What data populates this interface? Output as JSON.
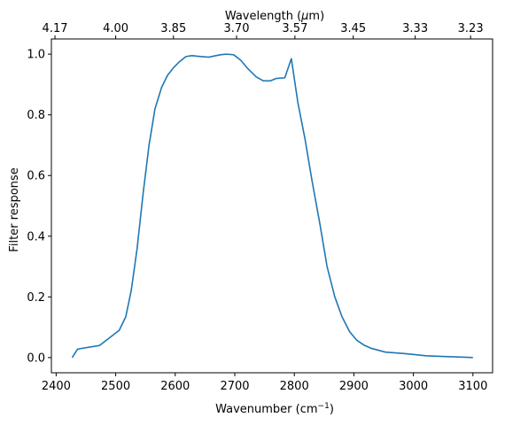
{
  "chart_data": {
    "type": "line",
    "xlabel": "Wavenumber (cm",
    "xlabel_sup": "−1",
    "xlabel_close": ")",
    "ylabel": "Filter response",
    "top_label": "Wavelength (",
    "top_label_mu": "μ",
    "top_label_close": "m)",
    "xlim": [
      2392,
      3133
    ],
    "ylim": [
      -0.05,
      1.05
    ],
    "xticks": [
      "2400",
      "2500",
      "2600",
      "2700",
      "2800",
      "2900",
      "3000",
      "3100"
    ],
    "yticks": [
      "0.0",
      "0.2",
      "0.4",
      "0.6",
      "0.8",
      "1.0"
    ],
    "top_ticks": [
      {
        "label": "4.17",
        "wavenumber": 2398
      },
      {
        "label": "4.00",
        "wavenumber": 2500
      },
      {
        "label": "3.85",
        "wavenumber": 2597
      },
      {
        "label": "3.70",
        "wavenumber": 2703
      },
      {
        "label": "3.57",
        "wavenumber": 2801
      },
      {
        "label": "3.45",
        "wavenumber": 2899
      },
      {
        "label": "3.33",
        "wavenumber": 3003
      },
      {
        "label": "3.23",
        "wavenumber": 3096
      }
    ],
    "grid": false,
    "series": [
      {
        "color": "#1f77b4",
        "x": [
          2427,
          2436,
          2473,
          2506,
          2517,
          2526,
          2536,
          2546,
          2556,
          2566,
          2577,
          2587,
          2597,
          2607,
          2618,
          2628,
          2638,
          2656,
          2676,
          2686,
          2698,
          2710,
          2722,
          2736,
          2748,
          2760,
          2770,
          2784,
          2795,
          2806,
          2818,
          2830,
          2843,
          2855,
          2868,
          2880,
          2893,
          2905,
          2918,
          2930,
          2953,
          2987,
          3021,
          3100
        ],
        "y": [
          0.0,
          0.028,
          0.04,
          0.09,
          0.135,
          0.22,
          0.36,
          0.54,
          0.7,
          0.82,
          0.89,
          0.93,
          0.955,
          0.975,
          0.992,
          0.995,
          0.993,
          0.99,
          0.998,
          1.0,
          0.998,
          0.98,
          0.952,
          0.925,
          0.912,
          0.912,
          0.92,
          0.922,
          0.985,
          0.84,
          0.72,
          0.58,
          0.44,
          0.3,
          0.2,
          0.135,
          0.085,
          0.057,
          0.04,
          0.03,
          0.018,
          0.013,
          0.006,
          0.0
        ]
      }
    ]
  }
}
